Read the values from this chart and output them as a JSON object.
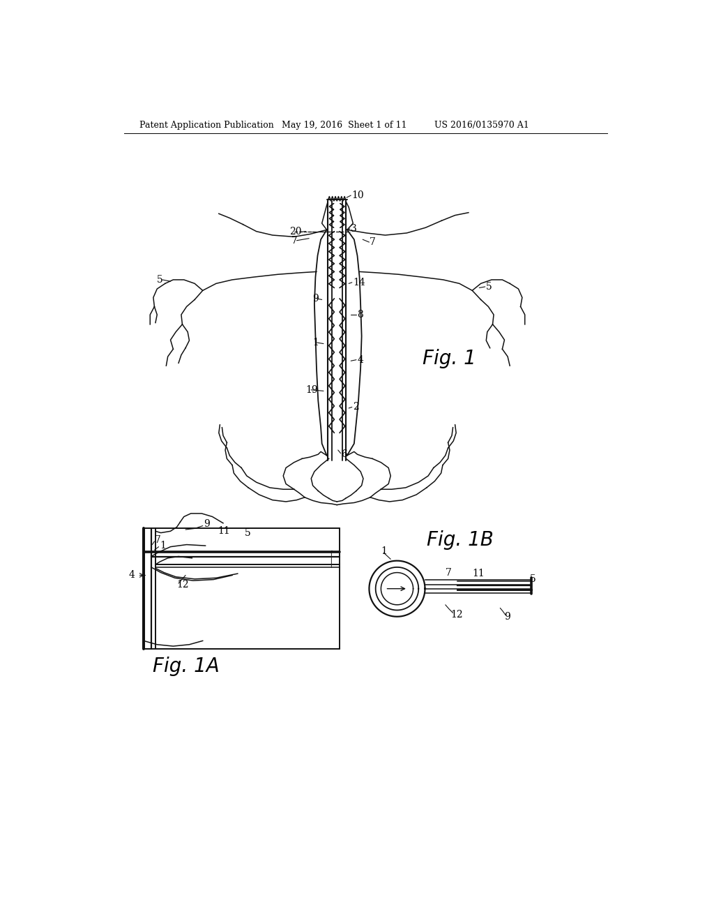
{
  "background_color": "#ffffff",
  "header_left": "Patent Application Publication",
  "header_mid": "May 19, 2016  Sheet 1 of 11",
  "header_right": "US 2016/0135970 A1",
  "line_color": "#111111",
  "line_width": 1.1
}
